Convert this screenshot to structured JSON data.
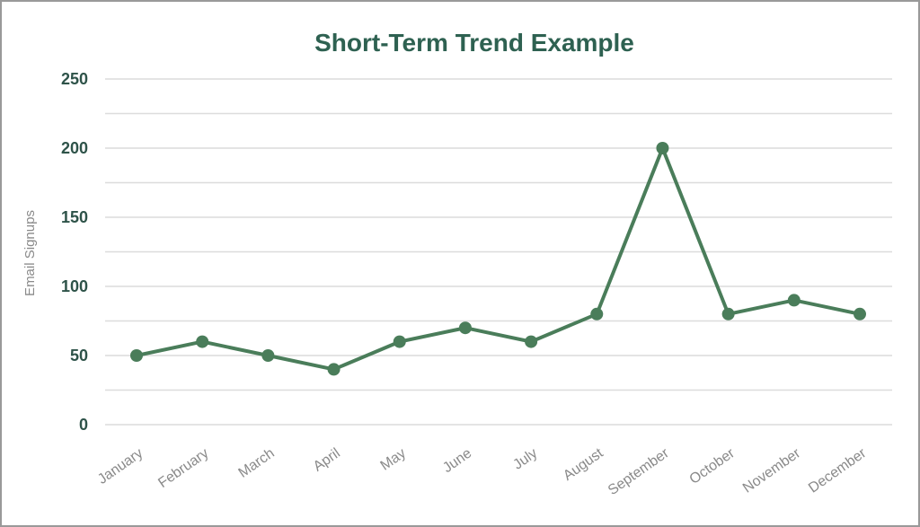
{
  "frame": {
    "background": "#ffffff",
    "border_color": "#999999"
  },
  "chart_data": {
    "type": "line",
    "title": "Short-Term Trend Example",
    "ylabel": "Email Signups",
    "xlabel": "",
    "categories": [
      "January",
      "February",
      "March",
      "April",
      "May",
      "June",
      "July",
      "August",
      "September",
      "October",
      "November",
      "December"
    ],
    "series": [
      {
        "name": "Email Signups",
        "values": [
          50,
          60,
          50,
          40,
          60,
          70,
          60,
          80,
          200,
          80,
          90,
          80
        ]
      }
    ],
    "ylim": [
      0,
      250
    ],
    "y_major_ticks": [
      0,
      50,
      100,
      150,
      200,
      250
    ],
    "y_minor_step": 25,
    "grid": "horizontal-only",
    "legend": "none",
    "marker": "circle",
    "x_label_rotation_deg": -35,
    "colors": {
      "line": "#4a7d5a",
      "marker": "#4a7d5a",
      "title": "#2e6151",
      "y_tick_label": "#2e5349",
      "x_tick_label": "#8a8a8a",
      "axis_title": "#8a8a8a",
      "gridline": "#dcdcdc"
    }
  }
}
